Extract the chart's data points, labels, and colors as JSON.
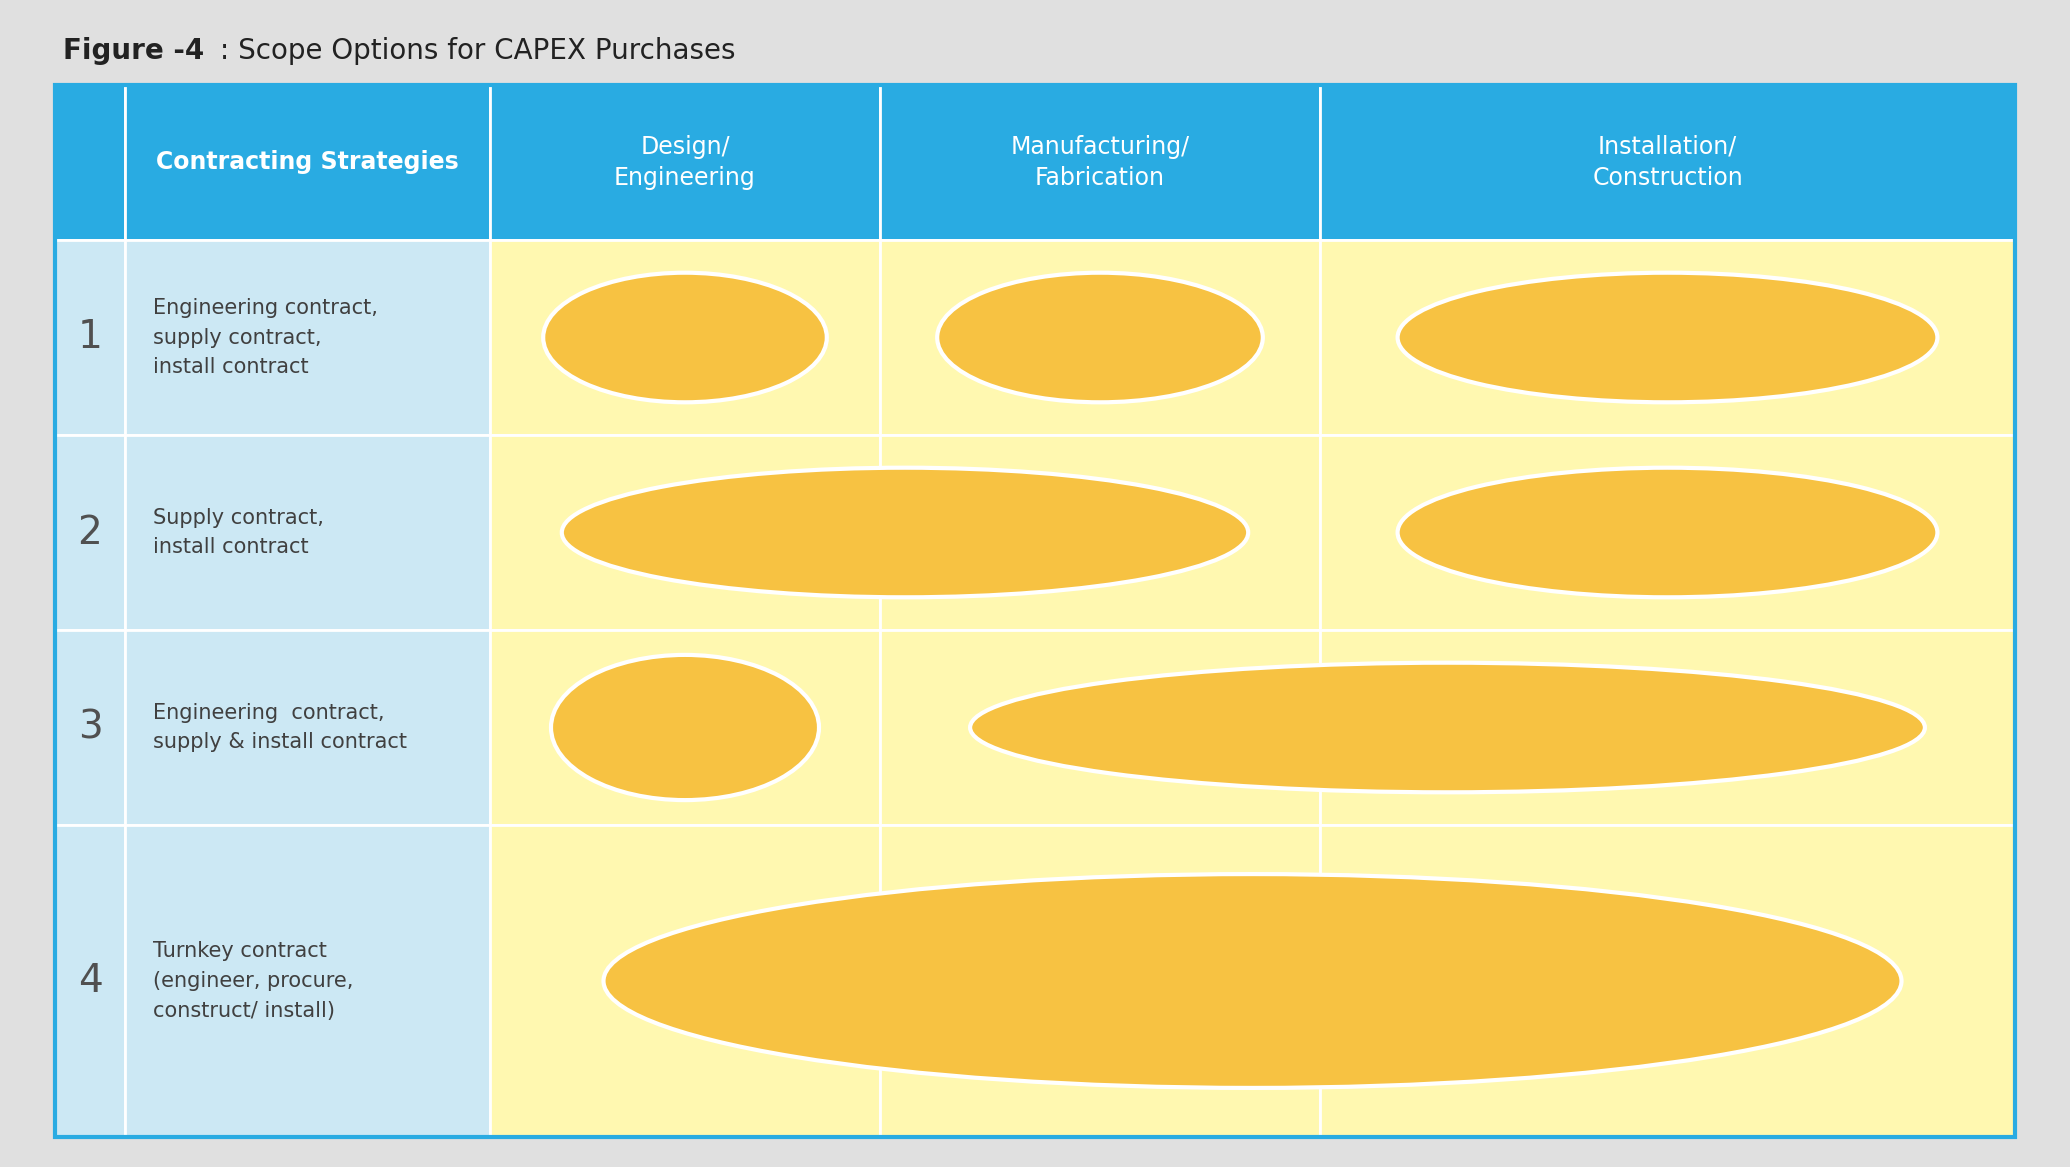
{
  "title_bold": "Figure -4",
  "title_rest": " : Scope Options for CAPEX Purchases",
  "title_fontsize": 20,
  "bg_color": "#e0e0e0",
  "header_bg": "#29abe2",
  "header_text_color": "#ffffff",
  "row_label_bg": "#cce8f4",
  "row_number_bg": "#cce8f4",
  "cell_bg_yellow": "#fff8b0",
  "ellipse_fill": "#f7c242",
  "ellipse_stroke": "#ffffff",
  "grid_line_color": "#ffffff",
  "outer_border_color": "#29abe2",
  "text_color": "#404040",
  "num_color": "#505050",
  "headers": [
    "",
    "Contracting Strategies",
    "Design/\nEngineering",
    "Manufacturing/\nFabrication",
    "Installation/\nConstruction"
  ],
  "row_numbers": [
    "1",
    "2",
    "3",
    "4"
  ],
  "row_labels": [
    "Engineering contract,\nsupply contract,\ninstall contract",
    "Supply contract,\ninstall contract",
    "Engineering  contract,\nsupply & install contract",
    "Turnkey contract\n(engineer, procure,\nconstruct/ install)"
  ]
}
